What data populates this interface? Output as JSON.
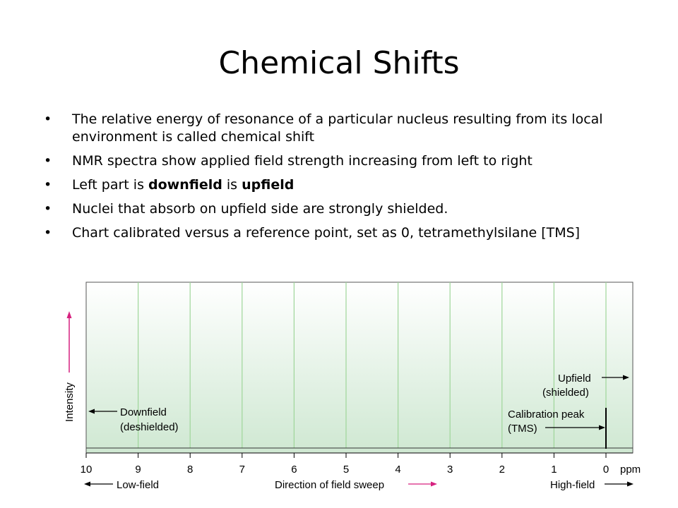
{
  "slide": {
    "title": "Chemical Shifts",
    "bullets": [
      {
        "parts": [
          {
            "text": "The relative energy of resonance of a particular nucleus resulting from its local environment is called chemical shift",
            "bold": false
          }
        ]
      },
      {
        "parts": [
          {
            "text": "NMR spectra show applied field strength increasing from left to right",
            "bold": false
          }
        ]
      },
      {
        "parts": [
          {
            "text": "Left part is ",
            "bold": false
          },
          {
            "text": "downfield",
            "bold": true
          },
          {
            "text": " is ",
            "bold": false
          },
          {
            "text": "upfield",
            "bold": true
          }
        ]
      },
      {
        "parts": [
          {
            "text": "Nuclei that absorb on upfield side are strongly shielded.",
            "bold": false
          }
        ]
      },
      {
        "parts": [
          {
            "text": "Chart calibrated versus a reference point, set as 0, tetramethylsilane [TMS]",
            "bold": false
          }
        ]
      }
    ]
  },
  "figure": {
    "y_axis_label": "Intensity",
    "x_ticks": [
      "10",
      "9",
      "8",
      "7",
      "6",
      "5",
      "4",
      "3",
      "2",
      "1",
      "0"
    ],
    "x_unit": "ppm",
    "low_field": "Low-field",
    "direction_label": "Direction of field sweep",
    "high_field": "High-field",
    "downfield_line1": "Downfield",
    "downfield_line2": "(deshielded)",
    "upfield_line1": "Upfield",
    "upfield_line2": "(shielded)",
    "calibration_line1": "Calibration peak",
    "calibration_line2": "(TMS)",
    "colors": {
      "panel_top": "#ffffff",
      "panel_bottom": "#cfe8d2",
      "gridline": "#9fd69a",
      "accent_arrow": "#d6217f",
      "panel_border": "#555555"
    }
  }
}
